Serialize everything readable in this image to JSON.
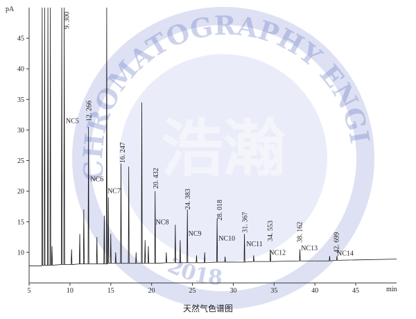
{
  "chart_data": {
    "type": "line",
    "title": "天然气色谱图",
    "y_label": "pA",
    "x_label": "min",
    "color": "#111111",
    "xlim": [
      5,
      50
    ],
    "xticks": [
      5,
      10,
      15,
      20,
      25,
      30,
      35,
      40,
      45
    ],
    "ylim": [
      5,
      50
    ],
    "yticks": [
      10,
      15,
      20,
      25,
      30,
      35,
      40,
      45
    ],
    "x": [
      5,
      6.5,
      6.55,
      6.6,
      6.65,
      6.85,
      6.9,
      6.95,
      7.25,
      7.3,
      7.35,
      7.55,
      7.6,
      7.65,
      7.75,
      7.8,
      7.85,
      8.95,
      9.0,
      9.05,
      9.25,
      9.3,
      9.35,
      10.15,
      10.2,
      10.25,
      11.15,
      11.2,
      11.25,
      11.65,
      11.7,
      11.75,
      12.22,
      12.27,
      12.32,
      13.25,
      13.3,
      13.35,
      14.15,
      14.2,
      14.25,
      14.45,
      14.5,
      14.55,
      14.65,
      14.7,
      14.75,
      14.95,
      15.0,
      15.05,
      15.55,
      15.6,
      15.65,
      16.2,
      16.25,
      16.3,
      17.15,
      17.2,
      17.25,
      18.05,
      18.1,
      18.15,
      18.75,
      18.8,
      18.85,
      19.15,
      19.2,
      19.25,
      19.55,
      19.6,
      19.65,
      20.38,
      20.43,
      20.48,
      21.75,
      21.8,
      21.85,
      22.85,
      22.9,
      22.95,
      23.45,
      23.5,
      23.55,
      24.33,
      24.38,
      24.43,
      25.45,
      25.5,
      25.55,
      26.45,
      26.5,
      26.55,
      27.97,
      28.02,
      28.07,
      28.95,
      29.0,
      29.05,
      31.32,
      31.37,
      31.42,
      32.45,
      32.5,
      32.55,
      34.5,
      34.55,
      34.6,
      38.11,
      38.16,
      38.21,
      41.75,
      41.8,
      41.85,
      42.65,
      42.7,
      42.75,
      50
    ],
    "values": [
      7.8,
      7.8,
      7.8,
      50,
      7.9,
      7.9,
      50,
      7.9,
      7.9,
      50,
      7.9,
      7.9,
      50,
      7.9,
      7.9,
      11,
      7.9,
      8.0,
      50,
      8.0,
      8.0,
      50,
      8.0,
      8.0,
      10.5,
      8.0,
      8.1,
      13,
      8.1,
      8.1,
      17,
      8.1,
      8.1,
      30.5,
      8.1,
      8.1,
      12.5,
      8.1,
      8.1,
      16,
      8.1,
      8.1,
      50,
      8.1,
      8.2,
      19,
      8.2,
      8.2,
      13,
      8.2,
      8.2,
      10,
      8.2,
      8.2,
      24.5,
      8.2,
      8.2,
      24,
      8.2,
      8.2,
      10,
      8.2,
      8.2,
      34.5,
      8.2,
      8.2,
      12,
      8.2,
      8.2,
      11,
      8.2,
      8.2,
      20,
      8.2,
      8.3,
      10,
      8.3,
      8.3,
      14.5,
      8.3,
      8.3,
      12,
      8.3,
      8.3,
      17,
      8.3,
      8.3,
      9.5,
      8.3,
      8.3,
      10,
      8.3,
      8.4,
      15.5,
      8.4,
      8.4,
      9.3,
      8.4,
      8.4,
      13,
      8.4,
      8.5,
      9.5,
      8.5,
      8.5,
      10.3,
      8.5,
      8.6,
      10.5,
      8.6,
      8.6,
      9.4,
      8.6,
      8.7,
      9.4,
      8.7,
      8.9
    ],
    "peak_labels": [
      {
        "text": "9. 300",
        "x": 9.6,
        "y": 46.5
      },
      {
        "text": "12. 266",
        "x": 12.3,
        "y": 31.4
      },
      {
        "text": "16. 247",
        "x": 16.4,
        "y": 24.6
      },
      {
        "text": "20. 432",
        "x": 20.5,
        "y": 20.4
      },
      {
        "text": "24. 383",
        "x": 24.4,
        "y": 17.0
      },
      {
        "text": "28. 018",
        "x": 28.3,
        "y": 15.2
      },
      {
        "text": "31. 367",
        "x": 31.4,
        "y": 13.2
      },
      {
        "text": "34. 553",
        "x": 34.5,
        "y": 11.8
      },
      {
        "text": "38. 162",
        "x": 38.1,
        "y": 11.6
      },
      {
        "text": "42. 699",
        "x": 42.6,
        "y": 9.9
      }
    ],
    "annotations": [
      {
        "text": "NC5",
        "x": 9.5,
        "y": 31.1
      },
      {
        "text": "NC6",
        "x": 12.5,
        "y": 21.6
      },
      {
        "text": "NC7",
        "x": 14.6,
        "y": 19.7
      },
      {
        "text": "NC8",
        "x": 20.5,
        "y": 14.6
      },
      {
        "text": "NC9",
        "x": 24.5,
        "y": 12.7
      },
      {
        "text": "NC10",
        "x": 28.2,
        "y": 11.9
      },
      {
        "text": "NC11",
        "x": 31.6,
        "y": 11.0
      },
      {
        "text": "NC12",
        "x": 34.4,
        "y": 9.6
      },
      {
        "text": "NC13",
        "x": 38.3,
        "y": 10.3
      },
      {
        "text": "NC14",
        "x": 42.7,
        "y": 9.5
      }
    ]
  },
  "watermark": {
    "ring_top": "CHROMATOGRAPHY ENGINEERING",
    "ring_bottom": "2018",
    "mark": "浩瀚"
  }
}
